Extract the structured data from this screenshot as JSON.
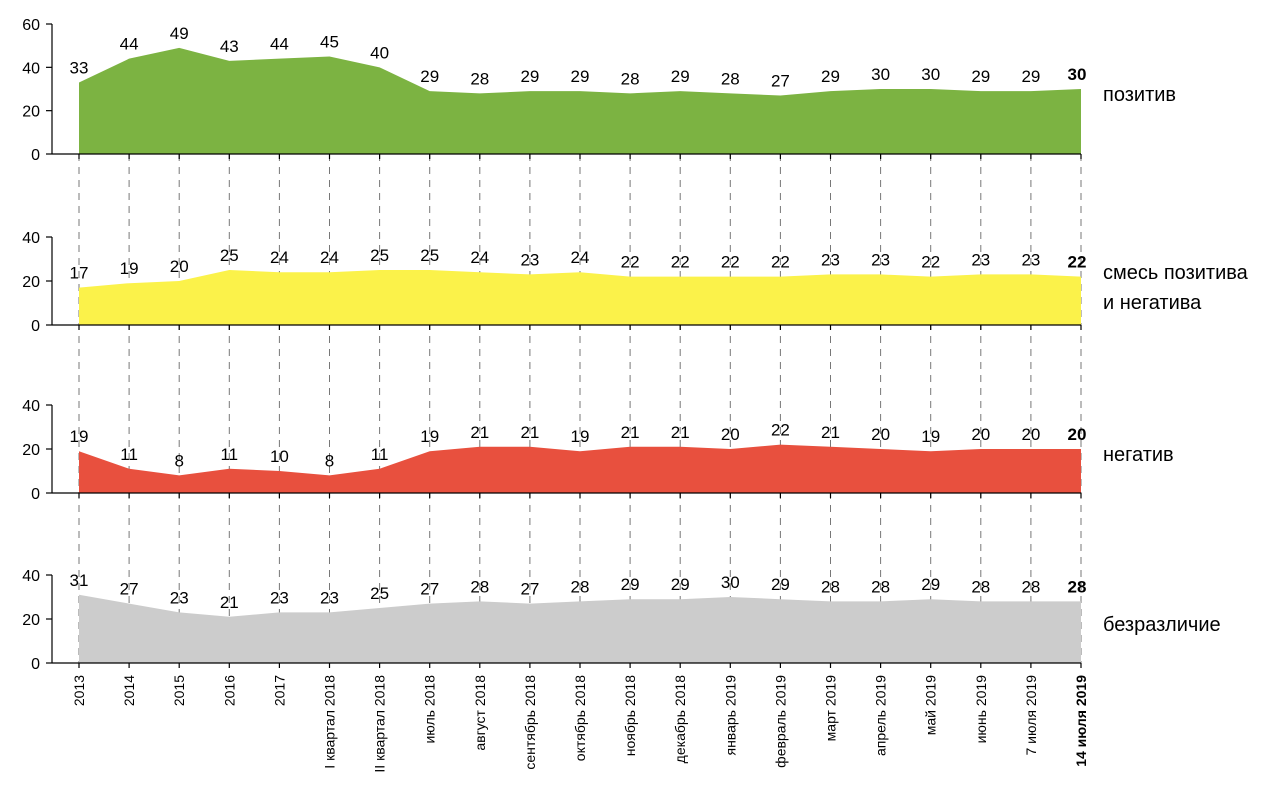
{
  "chart_data": {
    "type": "area",
    "categories": [
      "2013",
      "2014",
      "2015",
      "2016",
      "2017",
      "I квартал 2018",
      "II квартал 2018",
      "июль 2018",
      "август 2018",
      "сентябрь 2018",
      "октябрь 2018",
      "ноябрь 2018",
      "декабрь 2018",
      "январь 2019",
      "февраль 2019",
      "март 2019",
      "апрель 2019",
      "май 2019",
      "июнь 2019",
      "7 июля 2019",
      "14 июля 2019"
    ],
    "highlight_last": true,
    "series": [
      {
        "name": "позитив",
        "label_lines": [
          "позитив"
        ],
        "color": "#7cb342",
        "values": [
          33,
          44,
          49,
          43,
          44,
          45,
          40,
          29,
          28,
          29,
          29,
          28,
          29,
          28,
          27,
          29,
          30,
          30,
          29,
          29,
          30
        ],
        "ylim": [
          0,
          60
        ],
        "yticks": [
          0,
          20,
          40,
          60
        ]
      },
      {
        "name": "смесь позитива и негатива",
        "label_lines": [
          "смесь позитива",
          "и негатива"
        ],
        "color": "#fbf24a",
        "values": [
          17,
          19,
          20,
          25,
          24,
          24,
          25,
          25,
          24,
          23,
          24,
          22,
          22,
          22,
          22,
          23,
          23,
          22,
          23,
          23,
          22
        ],
        "ylim": [
          0,
          40
        ],
        "yticks": [
          0,
          20,
          40
        ]
      },
      {
        "name": "негатив",
        "label_lines": [
          "негатив"
        ],
        "color": "#e8503e",
        "values": [
          19,
          11,
          8,
          11,
          10,
          8,
          11,
          19,
          21,
          21,
          19,
          21,
          21,
          20,
          22,
          21,
          20,
          19,
          20,
          20,
          20
        ],
        "ylim": [
          0,
          40
        ],
        "yticks": [
          0,
          20,
          40
        ]
      },
      {
        "name": "безразличие",
        "label_lines": [
          "безразличие"
        ],
        "color": "#cccccc",
        "values": [
          31,
          27,
          23,
          21,
          23,
          23,
          25,
          27,
          28,
          27,
          28,
          29,
          29,
          30,
          29,
          28,
          28,
          29,
          28,
          28,
          28
        ],
        "ylim": [
          0,
          40
        ],
        "yticks": [
          0,
          20,
          40
        ]
      }
    ],
    "grid": false,
    "legend": "right"
  }
}
